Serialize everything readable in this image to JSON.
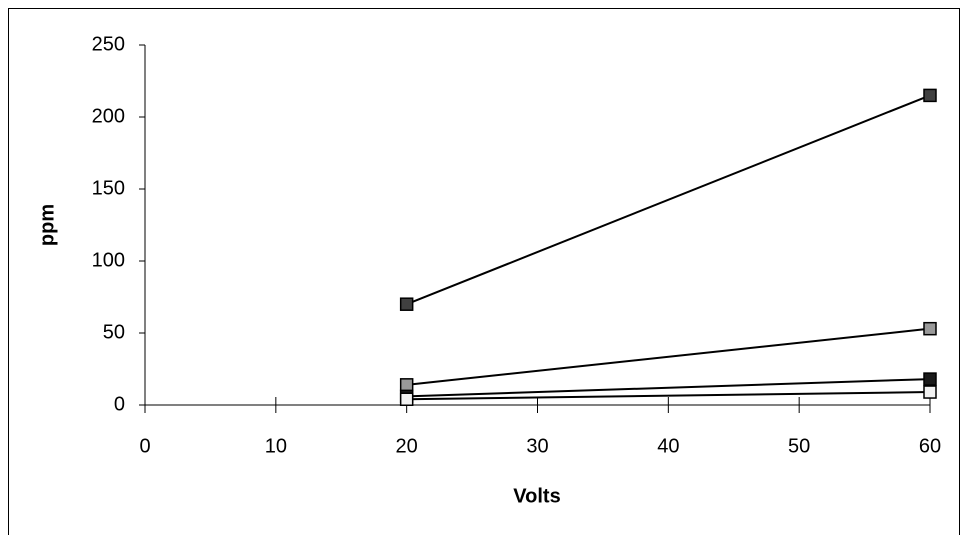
{
  "chart_data": {
    "type": "line",
    "x_label": "Volts",
    "y_label": "ppm",
    "x": [
      20,
      60
    ],
    "series": [
      {
        "color": "#404040",
        "values": [
          70,
          215
        ]
      },
      {
        "color": "#999999",
        "values": [
          14,
          53
        ]
      },
      {
        "color": "#1a1a1a",
        "values": [
          6,
          18
        ]
      },
      {
        "color": "#f2f2f2",
        "values": [
          4,
          9
        ]
      }
    ],
    "xlim": [
      0,
      60
    ],
    "xticks": [
      0,
      10,
      20,
      30,
      40,
      50,
      60
    ],
    "ylim": [
      0,
      250
    ],
    "yticks": [
      0,
      50,
      100,
      150,
      200,
      250
    ]
  }
}
